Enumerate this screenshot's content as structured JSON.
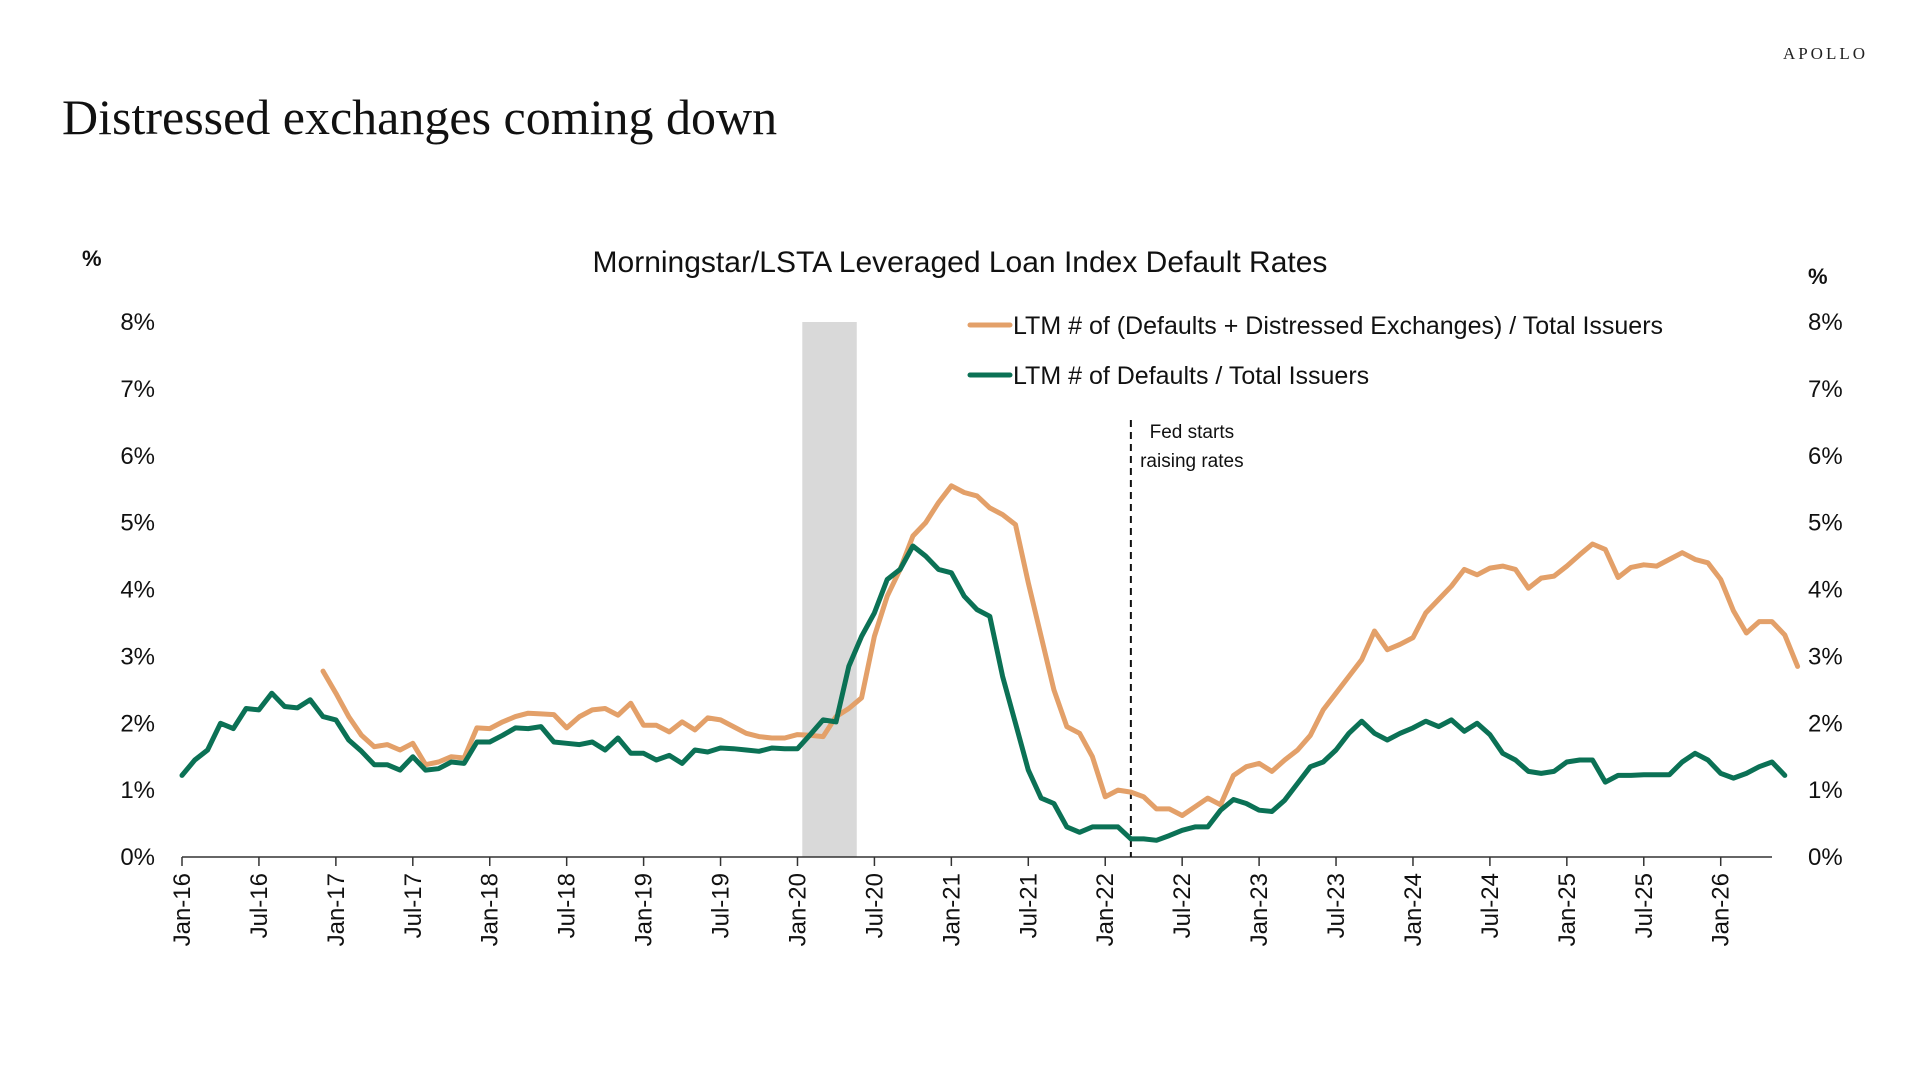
{
  "header": {
    "brand": "APOLLO",
    "title": "Distressed exchanges coming down"
  },
  "chart_data": {
    "type": "line",
    "title": "Morningstar/LSTA Leveraged Loan Index Default Rates",
    "ylabel_left": "%",
    "ylabel_right": "%",
    "ylim": [
      0,
      8
    ],
    "yticks": [
      "0%",
      "1%",
      "2%",
      "3%",
      "4%",
      "5%",
      "6%",
      "7%",
      "8%"
    ],
    "xlim": [
      "2016-01",
      "2026-05"
    ],
    "xticks": [
      "Jan-16",
      "Jul-16",
      "Jan-17",
      "Jul-17",
      "Jan-18",
      "Jul-18",
      "Jan-19",
      "Jul-19",
      "Jan-20",
      "Jul-20",
      "Jan-21",
      "Jul-21",
      "Jan-22",
      "Jul-22",
      "Jan-23",
      "Jul-23",
      "Jan-24",
      "Jul-24",
      "Jan-25",
      "Jul-25",
      "Jan-26"
    ],
    "recession_shading": {
      "start": "2020-02",
      "end": "2020-05"
    },
    "annotation": {
      "date": "2022-03",
      "lines": [
        "Fed starts",
        "raising rates"
      ]
    },
    "legend_position": "top-right",
    "colors": {
      "orange": "#E3A069",
      "green": "#0B7155",
      "shading": "#D9D9D9"
    },
    "series": [
      {
        "name": "LTM # of (Defaults + Distressed Exchanges) / Total Issuers",
        "color": "#E3A069",
        "points": [
          [
            "2016-12",
            2.78
          ],
          [
            "2017-01",
            2.45
          ],
          [
            "2017-02",
            2.1
          ],
          [
            "2017-03",
            1.82
          ],
          [
            "2017-04",
            1.65
          ],
          [
            "2017-05",
            1.68
          ],
          [
            "2017-06",
            1.6
          ],
          [
            "2017-07",
            1.7
          ],
          [
            "2017-08",
            1.38
          ],
          [
            "2017-09",
            1.42
          ],
          [
            "2017-10",
            1.5
          ],
          [
            "2017-11",
            1.48
          ],
          [
            "2017-12",
            1.93
          ],
          [
            "2018-01",
            1.92
          ],
          [
            "2018-02",
            2.02
          ],
          [
            "2018-03",
            2.1
          ],
          [
            "2018-04",
            2.15
          ],
          [
            "2018-05",
            2.14
          ],
          [
            "2018-06",
            2.13
          ],
          [
            "2018-07",
            1.93
          ],
          [
            "2018-08",
            2.1
          ],
          [
            "2018-09",
            2.2
          ],
          [
            "2018-10",
            2.22
          ],
          [
            "2018-11",
            2.12
          ],
          [
            "2018-12",
            2.3
          ],
          [
            "2019-01",
            1.97
          ],
          [
            "2019-02",
            1.97
          ],
          [
            "2019-03",
            1.87
          ],
          [
            "2019-04",
            2.02
          ],
          [
            "2019-05",
            1.9
          ],
          [
            "2019-06",
            2.08
          ],
          [
            "2019-07",
            2.05
          ],
          [
            "2019-08",
            1.95
          ],
          [
            "2019-09",
            1.85
          ],
          [
            "2019-10",
            1.8
          ],
          [
            "2019-11",
            1.78
          ],
          [
            "2019-12",
            1.78
          ],
          [
            "2020-01",
            1.83
          ],
          [
            "2020-02",
            1.82
          ],
          [
            "2020-03",
            1.8
          ],
          [
            "2020-04",
            2.1
          ],
          [
            "2020-05",
            2.22
          ],
          [
            "2020-06",
            2.38
          ],
          [
            "2020-07",
            3.3
          ],
          [
            "2020-08",
            3.9
          ],
          [
            "2020-09",
            4.3
          ],
          [
            "2020-10",
            4.8
          ],
          [
            "2020-11",
            5.0
          ],
          [
            "2020-12",
            5.3
          ],
          [
            "2021-01",
            5.55
          ],
          [
            "2021-02",
            5.45
          ],
          [
            "2021-03",
            5.4
          ],
          [
            "2021-04",
            5.22
          ],
          [
            "2021-05",
            5.12
          ],
          [
            "2021-06",
            4.97
          ],
          [
            "2021-07",
            4.1
          ],
          [
            "2021-08",
            3.3
          ],
          [
            "2021-09",
            2.5
          ],
          [
            "2021-10",
            1.95
          ],
          [
            "2021-11",
            1.85
          ],
          [
            "2021-12",
            1.5
          ],
          [
            "2022-01",
            0.9
          ],
          [
            "2022-02",
            1.0
          ],
          [
            "2022-03",
            0.97
          ],
          [
            "2022-04",
            0.9
          ],
          [
            "2022-05",
            0.72
          ],
          [
            "2022-06",
            0.72
          ],
          [
            "2022-07",
            0.62
          ],
          [
            "2022-08",
            0.75
          ],
          [
            "2022-09",
            0.88
          ],
          [
            "2022-10",
            0.78
          ],
          [
            "2022-11",
            1.22
          ],
          [
            "2022-12",
            1.35
          ],
          [
            "2023-01",
            1.4
          ],
          [
            "2023-02",
            1.28
          ],
          [
            "2023-03",
            1.45
          ],
          [
            "2023-04",
            1.6
          ],
          [
            "2023-05",
            1.82
          ],
          [
            "2023-06",
            2.2
          ],
          [
            "2023-07",
            2.45
          ],
          [
            "2023-08",
            2.7
          ],
          [
            "2023-09",
            2.95
          ],
          [
            "2023-10",
            3.38
          ],
          [
            "2023-11",
            3.1
          ],
          [
            "2023-12",
            3.18
          ],
          [
            "2024-01",
            3.28
          ],
          [
            "2024-02",
            3.65
          ],
          [
            "2024-03",
            3.85
          ],
          [
            "2024-04",
            4.05
          ],
          [
            "2024-05",
            4.3
          ],
          [
            "2024-06",
            4.22
          ],
          [
            "2024-07",
            4.32
          ],
          [
            "2024-08",
            4.35
          ],
          [
            "2024-09",
            4.3
          ],
          [
            "2024-10",
            4.02
          ],
          [
            "2024-11",
            4.17
          ],
          [
            "2024-12",
            4.2
          ],
          [
            "2025-01",
            4.35
          ],
          [
            "2025-02",
            4.52
          ],
          [
            "2025-03",
            4.68
          ],
          [
            "2025-04",
            4.6
          ],
          [
            "2025-05",
            4.18
          ],
          [
            "2025-06",
            4.33
          ],
          [
            "2025-07",
            4.37
          ],
          [
            "2025-08",
            4.35
          ],
          [
            "2025-09",
            4.45
          ],
          [
            "2025-10",
            4.55
          ],
          [
            "2025-11",
            4.45
          ],
          [
            "2025-12",
            4.4
          ],
          [
            "2026-01",
            4.15
          ],
          [
            "2026-02",
            3.68
          ],
          [
            "2026-03",
            3.35
          ],
          [
            "2026-04",
            3.52
          ],
          [
            "2026-05",
            3.52
          ],
          [
            "2026-06",
            3.32
          ],
          [
            "2026-07",
            2.85
          ]
        ]
      },
      {
        "name": "LTM # of Defaults / Total Issuers",
        "color": "#0B7155",
        "points": [
          [
            "2016-01",
            1.22
          ],
          [
            "2016-02",
            1.45
          ],
          [
            "2016-03",
            1.6
          ],
          [
            "2016-04",
            2.0
          ],
          [
            "2016-05",
            1.92
          ],
          [
            "2016-06",
            2.22
          ],
          [
            "2016-07",
            2.2
          ],
          [
            "2016-08",
            2.45
          ],
          [
            "2016-09",
            2.25
          ],
          [
            "2016-10",
            2.23
          ],
          [
            "2016-11",
            2.35
          ],
          [
            "2016-12",
            2.1
          ],
          [
            "2017-01",
            2.05
          ],
          [
            "2017-02",
            1.75
          ],
          [
            "2017-03",
            1.58
          ],
          [
            "2017-04",
            1.38
          ],
          [
            "2017-05",
            1.38
          ],
          [
            "2017-06",
            1.3
          ],
          [
            "2017-07",
            1.5
          ],
          [
            "2017-08",
            1.3
          ],
          [
            "2017-09",
            1.32
          ],
          [
            "2017-10",
            1.42
          ],
          [
            "2017-11",
            1.4
          ],
          [
            "2017-12",
            1.72
          ],
          [
            "2018-01",
            1.72
          ],
          [
            "2018-02",
            1.82
          ],
          [
            "2018-03",
            1.93
          ],
          [
            "2018-04",
            1.92
          ],
          [
            "2018-05",
            1.95
          ],
          [
            "2018-06",
            1.72
          ],
          [
            "2018-07",
            1.7
          ],
          [
            "2018-08",
            1.68
          ],
          [
            "2018-09",
            1.72
          ],
          [
            "2018-10",
            1.6
          ],
          [
            "2018-11",
            1.78
          ],
          [
            "2018-12",
            1.55
          ],
          [
            "2019-01",
            1.55
          ],
          [
            "2019-02",
            1.45
          ],
          [
            "2019-03",
            1.52
          ],
          [
            "2019-04",
            1.4
          ],
          [
            "2019-05",
            1.6
          ],
          [
            "2019-06",
            1.57
          ],
          [
            "2019-07",
            1.63
          ],
          [
            "2019-08",
            1.62
          ],
          [
            "2019-09",
            1.6
          ],
          [
            "2019-10",
            1.58
          ],
          [
            "2019-11",
            1.63
          ],
          [
            "2019-12",
            1.62
          ],
          [
            "2020-01",
            1.62
          ],
          [
            "2020-02",
            1.83
          ],
          [
            "2020-03",
            2.05
          ],
          [
            "2020-04",
            2.02
          ],
          [
            "2020-05",
            2.85
          ],
          [
            "2020-06",
            3.3
          ],
          [
            "2020-07",
            3.65
          ],
          [
            "2020-08",
            4.15
          ],
          [
            "2020-09",
            4.3
          ],
          [
            "2020-10",
            4.65
          ],
          [
            "2020-11",
            4.5
          ],
          [
            "2020-12",
            4.3
          ],
          [
            "2021-01",
            4.25
          ],
          [
            "2021-02",
            3.9
          ],
          [
            "2021-03",
            3.7
          ],
          [
            "2021-04",
            3.6
          ],
          [
            "2021-05",
            2.7
          ],
          [
            "2021-06",
            2.0
          ],
          [
            "2021-07",
            1.3
          ],
          [
            "2021-08",
            0.88
          ],
          [
            "2021-09",
            0.8
          ],
          [
            "2021-10",
            0.45
          ],
          [
            "2021-11",
            0.37
          ],
          [
            "2021-12",
            0.45
          ],
          [
            "2022-01",
            0.45
          ],
          [
            "2022-02",
            0.45
          ],
          [
            "2022-03",
            0.27
          ],
          [
            "2022-04",
            0.27
          ],
          [
            "2022-05",
            0.25
          ],
          [
            "2022-06",
            0.32
          ],
          [
            "2022-07",
            0.4
          ],
          [
            "2022-08",
            0.45
          ],
          [
            "2022-09",
            0.45
          ],
          [
            "2022-10",
            0.7
          ],
          [
            "2022-11",
            0.86
          ],
          [
            "2022-12",
            0.8
          ],
          [
            "2023-01",
            0.7
          ],
          [
            "2023-02",
            0.68
          ],
          [
            "2023-03",
            0.85
          ],
          [
            "2023-04",
            1.1
          ],
          [
            "2023-05",
            1.35
          ],
          [
            "2023-06",
            1.42
          ],
          [
            "2023-07",
            1.6
          ],
          [
            "2023-08",
            1.85
          ],
          [
            "2023-09",
            2.03
          ],
          [
            "2023-10",
            1.85
          ],
          [
            "2023-11",
            1.75
          ],
          [
            "2023-12",
            1.85
          ],
          [
            "2024-01",
            1.93
          ],
          [
            "2024-02",
            2.03
          ],
          [
            "2024-03",
            1.95
          ],
          [
            "2024-04",
            2.05
          ],
          [
            "2024-05",
            1.88
          ],
          [
            "2024-06",
            2.0
          ],
          [
            "2024-07",
            1.83
          ],
          [
            "2024-08",
            1.55
          ],
          [
            "2024-09",
            1.45
          ],
          [
            "2024-10",
            1.28
          ],
          [
            "2024-11",
            1.25
          ],
          [
            "2024-12",
            1.28
          ],
          [
            "2025-01",
            1.42
          ],
          [
            "2025-02",
            1.45
          ],
          [
            "2025-03",
            1.45
          ],
          [
            "2025-04",
            1.12
          ],
          [
            "2025-05",
            1.22
          ],
          [
            "2025-06",
            1.22
          ],
          [
            "2025-07",
            1.23
          ],
          [
            "2025-08",
            1.23
          ],
          [
            "2025-09",
            1.23
          ],
          [
            "2025-10",
            1.42
          ],
          [
            "2025-11",
            1.55
          ],
          [
            "2025-12",
            1.45
          ],
          [
            "2026-01",
            1.25
          ],
          [
            "2026-02",
            1.18
          ],
          [
            "2026-03",
            1.25
          ],
          [
            "2026-04",
            1.35
          ],
          [
            "2026-05",
            1.42
          ],
          [
            "2026-06",
            1.22
          ]
        ]
      }
    ]
  }
}
